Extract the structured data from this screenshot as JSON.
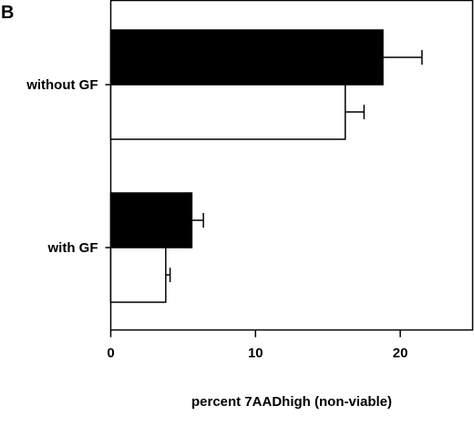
{
  "chart_data": {
    "type": "bar",
    "orientation": "horizontal",
    "panel_label": "B",
    "title": "",
    "xlabel": "percent 7AADhigh (non-viable)",
    "ylabel": "",
    "xlim": [
      0,
      25
    ],
    "x_ticks": [
      0,
      10,
      20
    ],
    "x_tick_labels": [
      "0",
      "10",
      "20"
    ],
    "grid": false,
    "legend": "none",
    "categories": [
      "without GF",
      "with GF"
    ],
    "series": [
      {
        "fill": "#000000",
        "values": [
          18.8,
          5.6
        ],
        "errors": [
          2.7,
          0.8
        ]
      },
      {
        "fill": "#ffffff",
        "values": [
          16.2,
          3.8
        ],
        "errors": [
          1.3,
          0.3
        ]
      }
    ]
  },
  "colors": {
    "axis": "#000000",
    "bar_filled": "#000000",
    "bar_open": "#ffffff"
  }
}
